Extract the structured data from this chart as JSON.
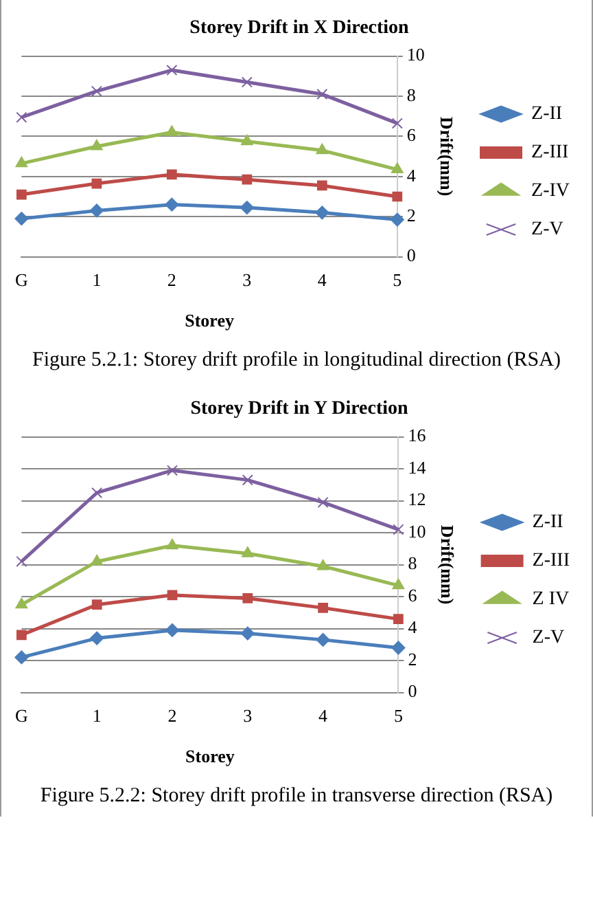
{
  "chart_data": [
    {
      "type": "line",
      "title": "Storey Drift in X Direction",
      "xlabel": "Storey",
      "ylabel": "Drift(mm)",
      "categories": [
        "G",
        "1",
        "2",
        "3",
        "4",
        "5"
      ],
      "series": [
        {
          "name": "Z-II",
          "color": "#4a7ebb",
          "marker": "diamond",
          "values": [
            1.9,
            2.3,
            2.6,
            2.45,
            2.2,
            1.85
          ]
        },
        {
          "name": "Z-III",
          "color": "#be4b48",
          "marker": "square",
          "values": [
            3.1,
            3.65,
            4.1,
            3.85,
            3.55,
            3.0
          ]
        },
        {
          "name": "Z-IV",
          "color": "#98b954",
          "marker": "triangle",
          "values": [
            4.65,
            5.5,
            6.2,
            5.75,
            5.3,
            4.35
          ]
        },
        {
          "name": "Z-V",
          "color": "#7d60a0",
          "marker": "cross",
          "values": [
            6.95,
            8.25,
            9.3,
            8.7,
            8.1,
            6.65
          ]
        }
      ],
      "ylim": [
        0,
        10
      ],
      "yticks": [
        0,
        2,
        4,
        6,
        8,
        10
      ],
      "grid": "y",
      "legend": "right",
      "annotations": [
        "Figure 5.2.1: Storey drift profile in longitudinal direction (RSA)"
      ]
    },
    {
      "type": "line",
      "title": "Storey Drift in Y Direction",
      "xlabel": "Storey",
      "ylabel": "Drift(mm)",
      "categories": [
        "G",
        "1",
        "2",
        "3",
        "4",
        "5"
      ],
      "series": [
        {
          "name": "Z-II",
          "color": "#4a7ebb",
          "marker": "diamond",
          "values": [
            2.2,
            3.4,
            3.9,
            3.7,
            3.3,
            2.8
          ]
        },
        {
          "name": "Z-III",
          "color": "#be4b48",
          "marker": "square",
          "values": [
            3.6,
            5.5,
            6.1,
            5.9,
            5.3,
            4.6
          ]
        },
        {
          "name": "Z IV",
          "color": "#98b954",
          "marker": "triangle",
          "values": [
            5.5,
            8.2,
            9.2,
            8.7,
            7.9,
            6.7
          ]
        },
        {
          "name": "Z-V",
          "color": "#7d60a0",
          "marker": "cross",
          "values": [
            8.2,
            12.5,
            13.9,
            13.3,
            11.9,
            10.2
          ]
        }
      ],
      "ylim": [
        0,
        16
      ],
      "yticks": [
        0,
        2,
        4,
        6,
        8,
        10,
        12,
        14,
        16
      ],
      "grid": "y",
      "legend": "right",
      "annotations": [
        "Figure 5.2.2: Storey drift profile in transverse direction  (RSA)"
      ]
    }
  ]
}
